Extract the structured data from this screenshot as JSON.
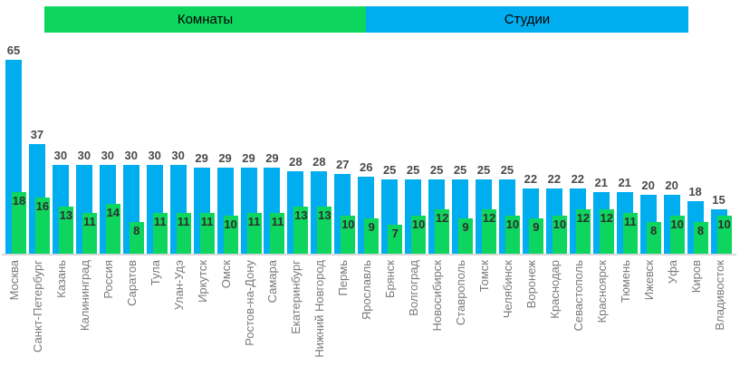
{
  "chart_data": {
    "type": "bar",
    "title": "",
    "categories": [
      "Москва",
      "Санкт-Петербург",
      "Казань",
      "Калининград",
      "Россия",
      "Саратов",
      "Тула",
      "Улан-Удэ",
      "Иркутск",
      "Омск",
      "Ростов-на-Дону",
      "Самара",
      "Екатеринбург",
      "Нижний Новгород",
      "Пермь",
      "Ярославль",
      "Брянск",
      "Волгоград",
      "Новосибирск",
      "Ставрополь",
      "Томск",
      "Челябинск",
      "Воронеж",
      "Краснодар",
      "Севастополь",
      "Красноярск",
      "Тюмень",
      "Ижевск",
      "Уфа",
      "Киров",
      "Владивосток"
    ],
    "series": [
      {
        "name": "Студии",
        "color": "#00AEF0",
        "values": [
          65,
          37,
          30,
          30,
          30,
          30,
          30,
          30,
          29,
          29,
          29,
          29,
          28,
          28,
          27,
          26,
          25,
          25,
          25,
          25,
          25,
          25,
          22,
          22,
          22,
          21,
          21,
          20,
          20,
          18,
          15
        ]
      },
      {
        "name": "Комнаты",
        "color": "#0ED55E",
        "values": [
          18,
          16,
          13,
          11,
          14,
          8,
          11,
          11,
          11,
          10,
          11,
          11,
          13,
          13,
          10,
          9,
          7,
          10,
          12,
          9,
          12,
          10,
          9,
          10,
          12,
          12,
          11,
          8,
          10,
          8,
          10
        ]
      }
    ],
    "legend": {
      "position": "top",
      "items": [
        {
          "label": "Комнаты",
          "color": "#0ED55E"
        },
        {
          "label": "Студии",
          "color": "#00AEF0"
        }
      ]
    },
    "value_labels": "shown",
    "axis": {
      "x_tick_rotation": 90,
      "x_tick_color": "#7a7a7a",
      "y_axis_visible": false,
      "ylim": [
        0,
        70
      ],
      "baseline_color": "#d9d9d9",
      "grid": "off"
    }
  }
}
